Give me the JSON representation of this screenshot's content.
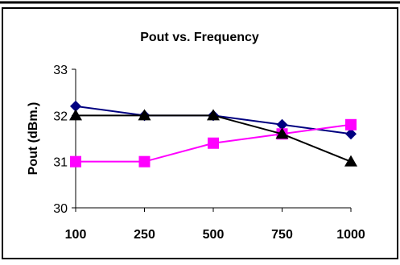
{
  "chart_data": {
    "type": "line",
    "title": "Pout vs. Frequency",
    "xlabel": "",
    "ylabel": "Pout (dBm.)",
    "categories": [
      "100",
      "250",
      "500",
      "750",
      "1000"
    ],
    "ylim": [
      30,
      33
    ],
    "yticks": [
      "30",
      "31",
      "32",
      "33"
    ],
    "grid": false,
    "legend": "none",
    "series": [
      {
        "values": [
          32.2,
          32.0,
          32.0,
          31.8,
          31.6
        ],
        "color": "#000080",
        "marker": "diamond"
      },
      {
        "values": [
          31.0,
          31.0,
          31.4,
          31.6,
          31.8
        ],
        "color": "#ff00ff",
        "marker": "square"
      },
      {
        "values": [
          32.0,
          32.0,
          32.0,
          31.6,
          31.0
        ],
        "color": "#000000",
        "marker": "triangle"
      }
    ]
  }
}
